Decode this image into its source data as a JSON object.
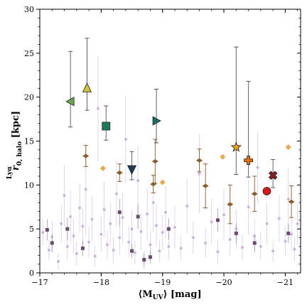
{
  "chart_data": {
    "type": "scatter",
    "title": "",
    "xlabel": {
      "pre": "⟨M",
      "sub": "UV",
      "post": "⟩ [mag]"
    },
    "ylabel": {
      "sym": "r",
      "sub": "0, halo",
      "sup": "Lyα",
      "unit": " [kpc]"
    },
    "xlim": [
      -17,
      -21.25
    ],
    "ylim": [
      0,
      30
    ],
    "x_inverted": true,
    "x_ticks": [
      -17,
      -18,
      -19,
      -20,
      -21
    ],
    "x_tick_labels": [
      "−17",
      "−18",
      "−19",
      "−20",
      "−21"
    ],
    "y_ticks": [
      0,
      5,
      10,
      15,
      20,
      25,
      30
    ],
    "y_tick_labels": [
      "0",
      "5",
      "10",
      "15",
      "20",
      "25",
      "30"
    ],
    "grid": false,
    "series": [
      {
        "marker": "circle-small",
        "color": "#c3a8d8",
        "points": [
          {
            "x": -17.05,
            "y": 4.6,
            "e": 1.5
          },
          {
            "x": -17.15,
            "y": 2.6,
            "e": 1.2
          },
          {
            "x": -17.2,
            "y": 4.1,
            "e": 1.8
          },
          {
            "x": -17.3,
            "y": 1.3,
            "e": 1.0
          },
          {
            "x": -17.35,
            "y": 5.6,
            "e": 2.2
          },
          {
            "x": -17.4,
            "y": 8.8,
            "e": 3.5
          },
          {
            "x": -17.45,
            "y": 3.0,
            "e": 1.6
          },
          {
            "x": -17.5,
            "y": 6.4,
            "e": 3.0
          },
          {
            "x": -17.55,
            "y": 4.2,
            "e": 2.0
          },
          {
            "x": -17.6,
            "y": 2.2,
            "e": 1.4
          },
          {
            "x": -17.65,
            "y": 7.4,
            "e": 2.8
          },
          {
            "x": -17.7,
            "y": 5.3,
            "e": 2.1
          },
          {
            "x": -17.75,
            "y": 9.5,
            "e": 5.2
          },
          {
            "x": -17.8,
            "y": 3.5,
            "e": 1.8
          },
          {
            "x": -17.85,
            "y": 6.1,
            "e": 2.6
          },
          {
            "x": -17.9,
            "y": 1.9,
            "e": 1.2
          },
          {
            "x": -17.95,
            "y": 18.7,
            "e": 6.0
          },
          {
            "x": -18.0,
            "y": 4.4,
            "e": 2.0
          },
          {
            "x": -18.05,
            "y": 7.2,
            "e": 3.2
          },
          {
            "x": -18.1,
            "y": 3.2,
            "e": 1.6
          },
          {
            "x": -18.15,
            "y": 5.6,
            "e": 2.4
          },
          {
            "x": -18.2,
            "y": 2.6,
            "e": 1.5
          },
          {
            "x": -18.25,
            "y": 9.0,
            "e": 3.8
          },
          {
            "x": -18.3,
            "y": 4.0,
            "e": 1.9
          },
          {
            "x": -18.35,
            "y": 6.3,
            "e": 2.8
          },
          {
            "x": -18.4,
            "y": 15.2,
            "e": 5.0
          },
          {
            "x": -18.45,
            "y": 3.5,
            "e": 1.8
          },
          {
            "x": -18.5,
            "y": 5.0,
            "e": 2.2
          },
          {
            "x": -18.55,
            "y": 2.3,
            "e": 1.3
          },
          {
            "x": -18.6,
            "y": 10.5,
            "e": 4.0
          },
          {
            "x": -18.65,
            "y": 4.7,
            "e": 2.1
          },
          {
            "x": -18.7,
            "y": 1.4,
            "e": 1.0
          },
          {
            "x": -18.75,
            "y": 6.7,
            "e": 3.0
          },
          {
            "x": -18.8,
            "y": 3.2,
            "e": 1.6
          },
          {
            "x": -18.85,
            "y": 8.0,
            "e": 3.4
          },
          {
            "x": -18.9,
            "y": 5.4,
            "e": 2.4
          },
          {
            "x": -18.95,
            "y": 2.5,
            "e": 1.3
          },
          {
            "x": -19.0,
            "y": 4.6,
            "e": 2.0
          },
          {
            "x": -19.05,
            "y": 6.9,
            "e": 3.0
          },
          {
            "x": -19.1,
            "y": 3.0,
            "e": 1.5
          },
          {
            "x": -19.2,
            "y": 5.2,
            "e": 2.4
          },
          {
            "x": -19.3,
            "y": 2.8,
            "e": 1.4
          },
          {
            "x": -19.4,
            "y": 7.6,
            "e": 3.1
          },
          {
            "x": -19.5,
            "y": 4.0,
            "e": 1.9
          },
          {
            "x": -19.6,
            "y": 11.3,
            "e": 4.5
          },
          {
            "x": -19.7,
            "y": 3.4,
            "e": 1.7
          },
          {
            "x": -19.8,
            "y": 5.8,
            "e": 2.6
          },
          {
            "x": -19.9,
            "y": 2.4,
            "e": 1.3
          },
          {
            "x": -20.0,
            "y": 6.6,
            "e": 2.9
          },
          {
            "x": -20.1,
            "y": 3.8,
            "e": 1.8
          },
          {
            "x": -20.2,
            "y": 5.0,
            "e": 2.2
          },
          {
            "x": -20.3,
            "y": 2.9,
            "e": 1.5
          },
          {
            "x": -20.4,
            "y": 7.5,
            "e": 3.2
          },
          {
            "x": -20.5,
            "y": 4.2,
            "e": 2.0
          },
          {
            "x": -20.55,
            "y": 12.0,
            "e": 4.0
          },
          {
            "x": -20.6,
            "y": 3.0,
            "e": 1.6
          },
          {
            "x": -20.7,
            "y": 5.6,
            "e": 2.4
          },
          {
            "x": -20.8,
            "y": 2.5,
            "e": 1.3
          },
          {
            "x": -20.9,
            "y": 6.2,
            "e": 2.7
          },
          {
            "x": -21.0,
            "y": 3.6,
            "e": 1.7
          },
          {
            "x": -21.05,
            "y": 8.4,
            "e": 3.6
          },
          {
            "x": -21.1,
            "y": 4.4,
            "e": 1.9
          },
          {
            "x": -21.15,
            "y": 2.7,
            "e": 1.4
          },
          {
            "x": -21.2,
            "y": 5.6,
            "e": 2.3
          }
        ]
      },
      {
        "marker": "square-small",
        "color": "#6b4a72",
        "points": [
          {
            "x": -17.12,
            "y": 4.9,
            "e": 1.2
          },
          {
            "x": -17.2,
            "y": 3.4,
            "e": 1.0
          },
          {
            "x": -17.45,
            "y": 5.0,
            "e": 1.3
          },
          {
            "x": -17.7,
            "y": 2.8,
            "e": 0.9
          },
          {
            "x": -18.3,
            "y": 6.9,
            "e": 1.5
          },
          {
            "x": -18.5,
            "y": 2.5,
            "e": 0.8
          },
          {
            "x": -18.6,
            "y": 6.4,
            "e": 1.4
          },
          {
            "x": -18.7,
            "y": 1.5,
            "e": 0.7
          },
          {
            "x": -18.8,
            "y": 1.8,
            "e": 0.7
          },
          {
            "x": -19.1,
            "y": 5.0,
            "e": 1.2
          },
          {
            "x": -19.9,
            "y": 6.0,
            "e": 1.3
          },
          {
            "x": -20.2,
            "y": 4.5,
            "e": 1.1
          },
          {
            "x": -20.5,
            "y": 3.4,
            "e": 0.9
          },
          {
            "x": -21.05,
            "y": 4.5,
            "e": 1.1
          }
        ]
      },
      {
        "marker": "thin-diamond",
        "color": "#8a5a2a",
        "points": [
          {
            "x": -17.75,
            "y": 13.3,
            "e": 1.2
          },
          {
            "x": -18.3,
            "y": 11.4,
            "e": 1.0
          },
          {
            "x": -18.85,
            "y": 10.1,
            "e": 1.0
          },
          {
            "x": -18.88,
            "y": 12.7,
            "e": 2.5
          },
          {
            "x": -19.6,
            "y": 12.8,
            "e": 1.3
          },
          {
            "x": -19.7,
            "y": 9.9,
            "e": 2.5
          },
          {
            "x": -20.1,
            "y": 7.8,
            "e": 2.2
          },
          {
            "x": -20.5,
            "y": 9.0,
            "e": 2.0
          },
          {
            "x": -21.1,
            "y": 8.1,
            "e": 1.8
          }
        ]
      },
      {
        "marker": "diamond",
        "color": "#e8a850",
        "points": [
          {
            "x": -18.03,
            "y": 11.9,
            "e": 0
          },
          {
            "x": -19.0,
            "y": 10.3,
            "e": 0
          },
          {
            "x": -19.98,
            "y": 13.2,
            "e": 0
          },
          {
            "x": -21.05,
            "y": 14.3,
            "e": 0
          }
        ]
      },
      {
        "marker": "triangle-left",
        "color": "#6aa84f",
        "points": [
          {
            "x": -17.5,
            "y": 19.5,
            "e_lo": 2.9,
            "e_hi": 5.7
          }
        ]
      },
      {
        "marker": "triangle-up",
        "color": "#d4c23a",
        "points": [
          {
            "x": -17.77,
            "y": 21.0,
            "e_lo": 2.5,
            "e_hi": 5.7
          }
        ]
      },
      {
        "marker": "square",
        "color": "#1f7a5a",
        "points": [
          {
            "x": -18.08,
            "y": 16.7,
            "e_lo": 1.6,
            "e_hi": 2.3
          }
        ]
      },
      {
        "marker": "triangle-down",
        "color": "#1f3a5a",
        "points": [
          {
            "x": -18.5,
            "y": 11.8,
            "e_lo": 1.2,
            "e_hi": 2.0
          }
        ]
      },
      {
        "marker": "triangle-right",
        "color": "#1b6b6b",
        "points": [
          {
            "x": -18.9,
            "y": 17.3,
            "e_lo": 2.5,
            "e_hi": 3.6
          }
        ]
      },
      {
        "marker": "star",
        "color": "#e8a020",
        "points": [
          {
            "x": -20.2,
            "y": 14.3,
            "e_lo": 3.1,
            "e_hi": 11.4
          }
        ]
      },
      {
        "marker": "plus",
        "color": "#e07010",
        "points": [
          {
            "x": -20.4,
            "y": 12.8,
            "e_lo": 1.9,
            "e_hi": 9.0
          }
        ]
      },
      {
        "marker": "x",
        "color": "#8a1a20",
        "points": [
          {
            "x": -20.8,
            "y": 11.1,
            "e_lo": 1.4,
            "e_hi": 1.8
          }
        ]
      },
      {
        "marker": "circle",
        "color": "#d41a1a",
        "points": [
          {
            "x": -20.7,
            "y": 9.3,
            "e_lo": 0,
            "e_hi": 0
          }
        ]
      }
    ]
  }
}
